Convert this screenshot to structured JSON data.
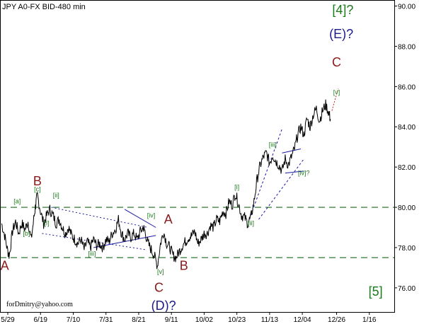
{
  "chart_data": {
    "type": "line",
    "title": "JPY A0-FX BID-480 min",
    "credit": "forDmitry@yahoo.com",
    "ylim": [
      74.8,
      90.3
    ],
    "y_ticks": [
      "76.00",
      "78.00",
      "80.00",
      "82.00",
      "84.00",
      "86.00",
      "88.00",
      "90.00"
    ],
    "y_tick_values": [
      76,
      78,
      80,
      82,
      84,
      86,
      88,
      90
    ],
    "x_ticks": [
      "5/29",
      "6/19",
      "7/10",
      "7/31",
      "8/21",
      "9/11",
      "10/02",
      "10/23",
      "11/13",
      "12/04",
      "12/26",
      "1/16"
    ],
    "x_tick_days": [
      0,
      21,
      42,
      63,
      84,
      105,
      126,
      147,
      168,
      189,
      211,
      232
    ],
    "xlim": [
      -5,
      248
    ],
    "horizontal_levels": [
      80.0,
      77.5
    ],
    "series": [
      {
        "x": [
          -4,
          -2,
          0,
          1,
          3,
          5,
          7,
          9,
          11,
          13,
          15,
          17,
          18,
          19,
          21,
          23,
          25,
          27,
          29,
          31,
          33,
          35,
          37,
          39,
          41,
          43,
          45,
          47,
          49,
          51,
          53,
          55,
          57,
          59,
          61,
          63,
          65,
          67,
          69,
          71,
          73,
          75,
          77,
          79,
          81,
          83,
          85,
          87,
          88,
          90,
          92,
          94,
          96,
          98,
          100,
          102,
          104,
          106,
          108,
          110,
          112,
          114,
          116,
          118,
          120,
          122,
          124,
          126,
          128,
          130,
          132,
          134,
          136,
          138,
          140,
          142,
          144,
          146,
          148,
          150,
          152,
          154,
          156,
          158,
          160,
          162,
          164,
          166,
          168,
          170,
          172,
          174,
          176,
          178,
          180,
          182,
          184,
          186,
          188,
          190,
          192,
          194,
          196,
          198,
          200,
          202,
          204,
          206,
          207
        ],
        "y": [
          79.2,
          78.6,
          77.8,
          77.6,
          78.8,
          79.3,
          78.7,
          79.2,
          78.9,
          79.3,
          78.4,
          79.6,
          80.2,
          80.6,
          79.8,
          79.2,
          79.6,
          79.9,
          79.6,
          79.2,
          79.4,
          79.0,
          78.7,
          79.0,
          78.6,
          78.4,
          78.2,
          78.4,
          77.9,
          78.3,
          78.0,
          78.4,
          78.1,
          78.2,
          78.0,
          78.4,
          78.3,
          78.7,
          78.9,
          79.4,
          78.7,
          78.4,
          78.7,
          78.5,
          78.7,
          78.4,
          78.8,
          79.0,
          78.8,
          78.2,
          77.9,
          77.6,
          77.1,
          78.2,
          78.8,
          78.2,
          78.0,
          77.6,
          77.5,
          77.8,
          78.1,
          78.3,
          78.5,
          78.6,
          78.8,
          78.2,
          78.4,
          78.7,
          78.7,
          79.1,
          79.0,
          79.4,
          79.3,
          79.8,
          79.7,
          80.3,
          80.1,
          80.7,
          80.2,
          79.6,
          79.5,
          79.2,
          79.5,
          80.3,
          81.4,
          82.1,
          82.5,
          82.7,
          82.2,
          82.6,
          82.3,
          82.1,
          81.8,
          82.4,
          82.1,
          82.5,
          82.9,
          83.6,
          84.0,
          83.6,
          84.4,
          84.0,
          84.6,
          84.9,
          84.3,
          84.8,
          85.1,
          84.7,
          84.4
        ]
      }
    ],
    "labels": [
      {
        "text": "A",
        "x": -2,
        "y": 76.9,
        "color": "#8b1a1a",
        "size": 18
      },
      {
        "text": "B",
        "x": 19,
        "y": 81.1,
        "color": "#8b1a1a",
        "size": 18
      },
      {
        "text": "A",
        "x": 103,
        "y": 79.2,
        "color": "#8b1a1a",
        "size": 18
      },
      {
        "text": "B",
        "x": 113,
        "y": 76.9,
        "color": "#8b1a1a",
        "size": 18
      },
      {
        "text": "C",
        "x": 97,
        "y": 75.8,
        "color": "#8b1a1a",
        "size": 18
      },
      {
        "text": "(D)?",
        "x": 100,
        "y": 74.9,
        "color": "#1a1a8b",
        "size": 18
      },
      {
        "text": "C",
        "x": 211,
        "y": 87.0,
        "color": "#8b1a1a",
        "size": 18
      },
      {
        "text": "(E)?",
        "x": 214,
        "y": 88.4,
        "color": "#1a1a8b",
        "size": 18
      },
      {
        "text": "[4]?",
        "x": 215,
        "y": 89.6,
        "color": "#1a7a1a",
        "size": 18
      },
      {
        "text": "[5]",
        "x": 236,
        "y": 75.6,
        "color": "#1a7a1a",
        "size": 18
      },
      {
        "text": "[a]",
        "x": 6,
        "y": 80.2,
        "color": "#1a7a1a",
        "size": 9
      },
      {
        "text": "[c]",
        "x": 19,
        "y": 80.8,
        "color": "#1a7a1a",
        "size": 9
      },
      {
        "text": "[b]",
        "x": 12,
        "y": 78.6,
        "color": "#1a7a1a",
        "size": 9
      },
      {
        "text": "[ii]",
        "x": 31,
        "y": 80.5,
        "color": "#1a7a1a",
        "size": 9
      },
      {
        "text": "[i]",
        "x": 25,
        "y": 79.1,
        "color": "#1a7a1a",
        "size": 9
      },
      {
        "text": "[iii]",
        "x": 54,
        "y": 77.6,
        "color": "#1a7a1a",
        "size": 9
      },
      {
        "text": "[iv]",
        "x": 92,
        "y": 79.5,
        "color": "#1a7a1a",
        "size": 9
      },
      {
        "text": "[v]",
        "x": 98,
        "y": 76.7,
        "color": "#1a7a1a",
        "size": 9
      },
      {
        "text": "[i]",
        "x": 147,
        "y": 80.9,
        "color": "#1a7a1a",
        "size": 9
      },
      {
        "text": "[ii]",
        "x": 156,
        "y": 79.1,
        "color": "#1a7a1a",
        "size": 9
      },
      {
        "text": "[iii]",
        "x": 170,
        "y": 83.0,
        "color": "#1a7a1a",
        "size": 9
      },
      {
        "text": "[iv]?",
        "x": 190,
        "y": 81.6,
        "color": "#1a7a1a",
        "size": 9
      },
      {
        "text": "[v]",
        "x": 211,
        "y": 85.6,
        "color": "#1a7a1a",
        "size": 9
      }
    ],
    "grid": false
  }
}
